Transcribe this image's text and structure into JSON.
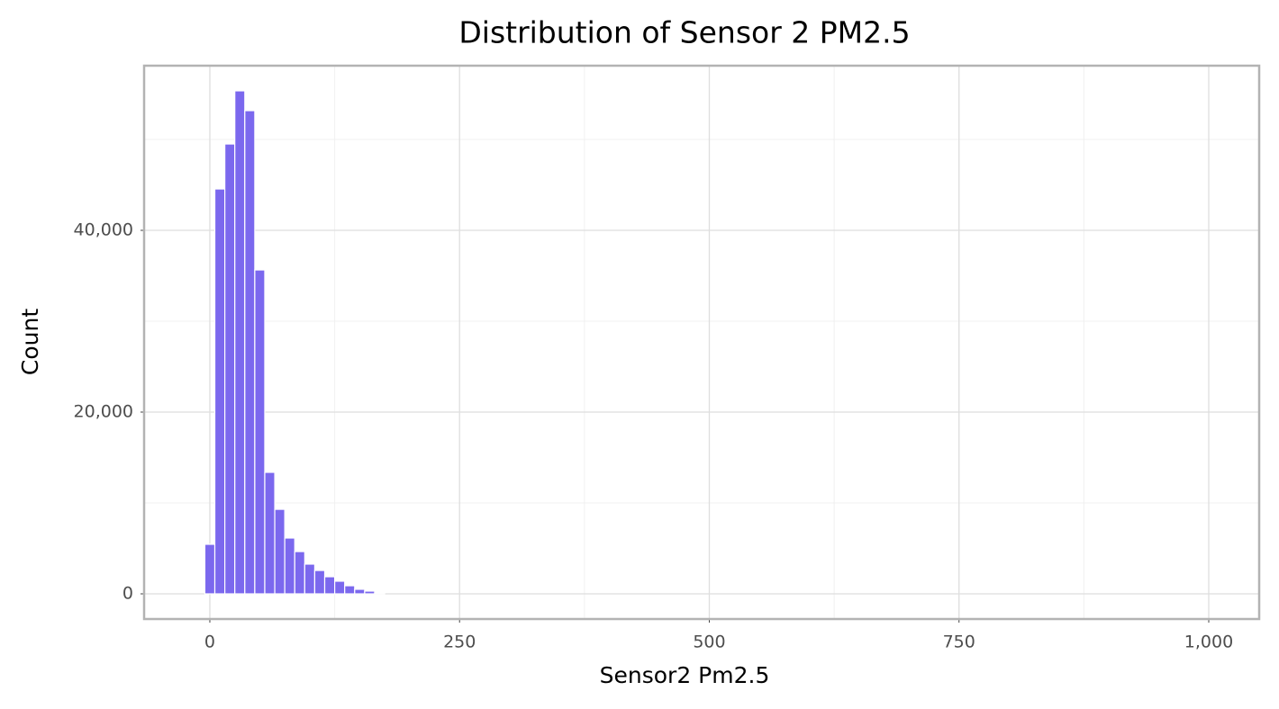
{
  "chart_data": {
    "type": "histogram",
    "title": "Distribution of Sensor 2 PM2.5",
    "x_label": "Sensor2 Pm2.5",
    "y_label": "Count",
    "bins": [
      -5,
      5,
      15,
      25,
      35,
      45,
      55,
      65,
      75,
      85,
      95,
      105,
      115,
      125,
      135,
      145,
      155,
      165,
      175
    ],
    "values": [
      5450,
      44550,
      49500,
      55350,
      53170,
      35640,
      13370,
      9300,
      6140,
      4650,
      3270,
      2570,
      1880,
      1390,
      890,
      500,
      300,
      100
    ],
    "color": "#7b68ee",
    "edge_color": "#ffffff",
    "xlim": [
      -65.8,
      1050.5
    ],
    "ylim": [
      -2772,
      58119
    ],
    "xticks": [
      0,
      250,
      500,
      750,
      {
        "value": 1000,
        "label": "1,000"
      }
    ],
    "yticks": [
      0,
      {
        "value": 20000,
        "label": "20,000"
      },
      {
        "value": 40000,
        "label": "40,000"
      }
    ],
    "x_minor_ticks": [
      125,
      375,
      625,
      875
    ],
    "y_minor_ticks": [
      10000,
      30000,
      50000
    ],
    "grid": true
  }
}
